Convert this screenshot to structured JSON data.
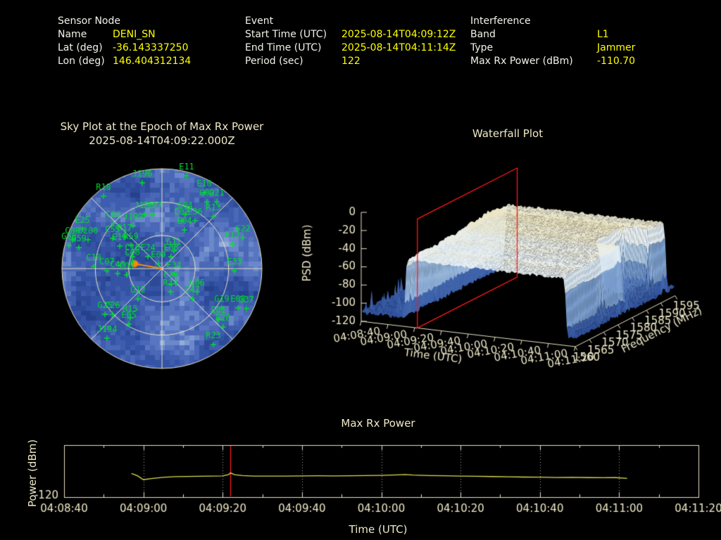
{
  "colors": {
    "background": "#000000",
    "header_label": "#f2f2ea",
    "header_value": "#ffff00",
    "plot_text": "#efe9c8",
    "axis_frame": "#e9e2c6",
    "grid_dotted": "#aaaaaa",
    "satellite_green": "#00dd33",
    "jammer_orange": "#ff8a00",
    "epoch_red": "#ff1a1a",
    "power_line_yellow": "#dcdc50"
  },
  "header": {
    "sensor": {
      "title": "Sensor Node",
      "rows": [
        {
          "label": "Name",
          "value": "DENI_SN"
        },
        {
          "label": "Lat (deg)",
          "value": "-36.143337250"
        },
        {
          "label": "Lon (deg)",
          "value": "146.404312134"
        }
      ]
    },
    "event": {
      "title": "Event",
      "rows": [
        {
          "label": "Start Time (UTC)",
          "value": "2025-08-14T04:09:12Z"
        },
        {
          "label": "End Time (UTC)",
          "value": "2025-08-14T04:11:14Z"
        },
        {
          "label": "Period (sec)",
          "value": "122"
        }
      ]
    },
    "interference": {
      "title": "Interference",
      "rows": [
        {
          "label": "Band",
          "value": "L1"
        },
        {
          "label": "Type",
          "value": "Jammer"
        },
        {
          "label": "Max Rx Power (dBm)",
          "value": "-110.70"
        }
      ]
    }
  },
  "chart_data": [
    {
      "id": "sky_plot",
      "type": "scatter",
      "projection": "polar",
      "title": "Sky Plot at the Epoch of Max Rx Power",
      "subtitle": "2025-08-14T04:09:22.000Z",
      "elevation_rings": 3,
      "radial_lines_deg": 45,
      "marker_color": "#00dd33",
      "jammer_marker": {
        "x": 111,
        "y": 143,
        "color": "#ff8a00"
      },
      "center": {
        "x": 150,
        "y": 150,
        "radius": 142
      },
      "heatmap_palette": [
        "#26418c",
        "#2c4a98",
        "#3453a4",
        "#3e5dae",
        "#4a68b6",
        "#5876c0",
        "#6a88ca",
        "#7e9ad2",
        "#93acd9"
      ],
      "satellites": [
        {
          "label": "E11",
          "x": 185,
          "y": 6
        },
        {
          "label": "J196",
          "x": 122,
          "y": 16
        },
        {
          "label": "R18",
          "x": 67,
          "y": 35
        },
        {
          "label": "E10",
          "x": 210,
          "y": 30
        },
        {
          "label": "G21",
          "x": 228,
          "y": 43
        },
        {
          "label": "G02",
          "x": 214,
          "y": 43
        },
        {
          "label": "J195",
          "x": 125,
          "y": 61
        },
        {
          "label": "J197",
          "x": 136,
          "y": 61
        },
        {
          "label": "G04",
          "x": 183,
          "y": 61
        },
        {
          "label": "C02",
          "x": 178,
          "y": 70
        },
        {
          "label": "E36",
          "x": 197,
          "y": 70
        },
        {
          "label": "R13",
          "x": 223,
          "y": 64
        },
        {
          "label": "C03",
          "x": 81,
          "y": 74
        },
        {
          "label": "J199",
          "x": 109,
          "y": 77
        },
        {
          "label": "E04",
          "x": 182,
          "y": 83
        },
        {
          "label": "E25",
          "x": 37,
          "y": 82
        },
        {
          "label": "C200",
          "x": 45,
          "y": 97
        },
        {
          "label": "C08",
          "x": 23,
          "y": 97
        },
        {
          "label": "G08",
          "x": 18,
          "y": 105
        },
        {
          "label": "G59",
          "x": 32,
          "y": 108
        },
        {
          "label": "C55",
          "x": 80,
          "y": 95
        },
        {
          "label": "R17",
          "x": 97,
          "y": 93
        },
        {
          "label": "E19",
          "x": 90,
          "y": 106
        },
        {
          "label": "R59",
          "x": 106,
          "y": 105
        },
        {
          "label": "G22",
          "x": 265,
          "y": 94
        },
        {
          "label": "E12",
          "x": 250,
          "y": 103
        },
        {
          "label": "E33",
          "x": 253,
          "y": 141
        },
        {
          "label": "G11",
          "x": 167,
          "y": 113
        },
        {
          "label": "E06",
          "x": 163,
          "y": 121
        },
        {
          "label": "C16",
          "x": 108,
          "y": 121
        },
        {
          "label": "E24",
          "x": 130,
          "y": 121
        },
        {
          "label": "C00",
          "x": 108,
          "y": 128
        },
        {
          "label": "E09",
          "x": 145,
          "y": 131
        },
        {
          "label": "E34",
          "x": 167,
          "y": 146
        },
        {
          "label": "C29",
          "x": 163,
          "y": 160
        },
        {
          "label": "R24",
          "x": 162,
          "y": 171
        },
        {
          "label": "G06",
          "x": 200,
          "y": 171
        },
        {
          "label": "C47",
          "x": 193,
          "y": 181
        },
        {
          "label": "C10",
          "x": 53,
          "y": 135
        },
        {
          "label": "C07",
          "x": 72,
          "y": 141
        },
        {
          "label": "C40",
          "x": 87,
          "y": 145
        },
        {
          "label": "C09",
          "x": 100,
          "y": 147
        },
        {
          "label": "G12",
          "x": 116,
          "y": 181
        },
        {
          "label": "G25",
          "x": 69,
          "y": 203
        },
        {
          "label": "C26",
          "x": 80,
          "y": 203
        },
        {
          "label": "R15",
          "x": 105,
          "y": 208
        },
        {
          "label": "E05",
          "x": 103,
          "y": 217
        },
        {
          "label": "J194",
          "x": 72,
          "y": 237
        },
        {
          "label": "G19",
          "x": 235,
          "y": 194
        },
        {
          "label": "E08",
          "x": 258,
          "y": 194
        },
        {
          "label": "G37",
          "x": 270,
          "y": 195
        },
        {
          "label": "E01",
          "x": 230,
          "y": 210
        },
        {
          "label": "E26",
          "x": 237,
          "y": 221
        },
        {
          "label": "R23",
          "x": 223,
          "y": 246
        }
      ]
    },
    {
      "id": "waterfall",
      "type": "heatmap",
      "title": "Waterfall Plot",
      "xlabel": "Time (UTC)",
      "ylabel": "PSD (dBm)",
      "zlabel": "Frequency (MHz)",
      "psd_ticks": [
        0,
        -20,
        -40,
        -60,
        -80,
        -100,
        -120
      ],
      "time_ticks": [
        "04:08:40",
        "04:09:00",
        "04:09:20",
        "04:09:40",
        "04:10:00",
        "04:10:20",
        "04:10:40",
        "04:11:00",
        "04:11:20"
      ],
      "freq_ticks": [
        1560,
        1565,
        1570,
        1575,
        1580,
        1585,
        1590,
        1595
      ],
      "time_span_sec": 160,
      "freq_range_mhz": [
        1560,
        1595
      ],
      "psd_range_dbm": [
        -120,
        0
      ],
      "event_window_sec": [
        32,
        154
      ],
      "epoch_sec": 42,
      "plateau_psd_dbm": -45,
      "noise_floor_dbm": -112,
      "valley": {
        "t_sec": [
          133,
          154
        ],
        "freq_mhz": [
          1579.5,
          1589.5
        ],
        "psd_dbm": -98
      },
      "color_stops": [
        [
          -120,
          "#1e3a74"
        ],
        [
          -110,
          "#33549e"
        ],
        [
          -100,
          "#4469ae"
        ],
        [
          -90,
          "#5e84c0"
        ],
        [
          -80,
          "#7fa2d0"
        ],
        [
          -70,
          "#a3c0de"
        ],
        [
          -60,
          "#c5d8ea"
        ],
        [
          -52,
          "#dde9f2"
        ],
        [
          -46,
          "#ebf1f2"
        ],
        [
          -40,
          "#eee8c8"
        ],
        [
          -30,
          "#e9dfb4"
        ],
        [
          0,
          "#e9dfb4"
        ]
      ]
    },
    {
      "id": "max_rx_power",
      "type": "line",
      "title": "Max Rx Power",
      "xlabel": "Time (UTC)",
      "ylabel": "Power (dBm)",
      "x_ticks": [
        "04:08:40",
        "04:09:00",
        "04:09:20",
        "04:09:40",
        "04:10:00",
        "04:10:20",
        "04:10:40",
        "04:11:00",
        "04:11:20"
      ],
      "x_span_sec": 160,
      "ylim": [
        -120,
        -100
      ],
      "y_tick_label": "-120",
      "epoch_line_sec": 42,
      "points": [
        [
          17,
          -110.9
        ],
        [
          18.5,
          -111.8
        ],
        [
          20,
          -113.3
        ],
        [
          22,
          -112.9
        ],
        [
          25,
          -112.4
        ],
        [
          28,
          -112.15
        ],
        [
          31,
          -112.05
        ],
        [
          34,
          -112.0
        ],
        [
          37,
          -111.95
        ],
        [
          40,
          -111.85
        ],
        [
          41.5,
          -111.3
        ],
        [
          42,
          -110.7
        ],
        [
          43,
          -111.4
        ],
        [
          45,
          -111.75
        ],
        [
          48,
          -111.9
        ],
        [
          52,
          -111.95
        ],
        [
          56,
          -111.9
        ],
        [
          60,
          -111.85
        ],
        [
          64,
          -111.8
        ],
        [
          68,
          -111.85
        ],
        [
          72,
          -111.8
        ],
        [
          76,
          -111.75
        ],
        [
          80,
          -111.65
        ],
        [
          84,
          -111.45
        ],
        [
          86,
          -111.3
        ],
        [
          88,
          -111.5
        ],
        [
          92,
          -111.7
        ],
        [
          96,
          -111.8
        ],
        [
          100,
          -111.9
        ],
        [
          104,
          -112.0
        ],
        [
          108,
          -112.1
        ],
        [
          112,
          -112.2
        ],
        [
          116,
          -112.3
        ],
        [
          120,
          -112.35
        ],
        [
          124,
          -112.45
        ],
        [
          128,
          -112.4
        ],
        [
          132,
          -112.5
        ],
        [
          136,
          -112.55
        ],
        [
          139,
          -112.5
        ],
        [
          142,
          -112.8
        ]
      ]
    }
  ]
}
